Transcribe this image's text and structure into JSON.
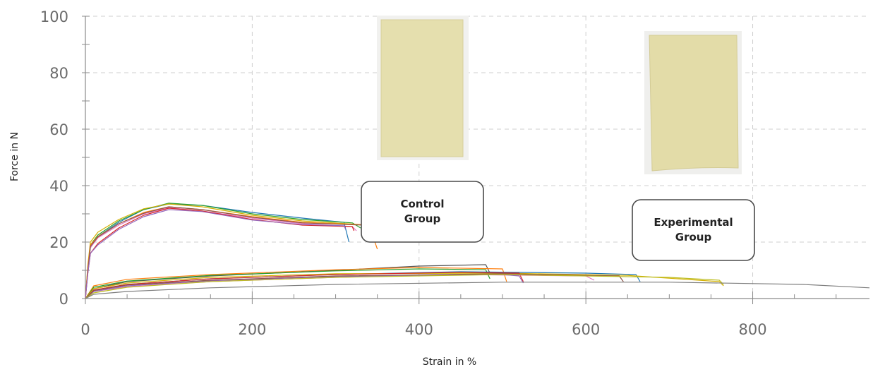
{
  "chart_data": {
    "type": "line",
    "title": "",
    "xlabel": "Strain in %",
    "ylabel": "Force in N",
    "xlim": [
      0,
      940
    ],
    "ylim": [
      0,
      100
    ],
    "x_ticks": [
      0,
      200,
      400,
      600,
      800
    ],
    "y_ticks": [
      0,
      20,
      40,
      60,
      80,
      100
    ],
    "grid": true,
    "annotations": [
      {
        "id": "control",
        "lines": [
          "Control",
          "Group"
        ]
      },
      {
        "id": "experimental",
        "lines": [
          "Experimental",
          "Group"
        ]
      }
    ],
    "series": [
      {
        "group": "control",
        "color": "#1f77b4",
        "points": [
          [
            0,
            0
          ],
          [
            3,
            10
          ],
          [
            6,
            18
          ],
          [
            15,
            22
          ],
          [
            40,
            27
          ],
          [
            70,
            31.5
          ],
          [
            100,
            33.5
          ],
          [
            140,
            33
          ],
          [
            200,
            30.5
          ],
          [
            260,
            28.5
          ],
          [
            310,
            27
          ],
          [
            316,
            20
          ]
        ]
      },
      {
        "group": "control",
        "color": "#2ca02c",
        "points": [
          [
            0,
            0
          ],
          [
            3,
            11
          ],
          [
            6,
            19
          ],
          [
            15,
            22.5
          ],
          [
            40,
            27.5
          ],
          [
            70,
            31.5
          ],
          [
            100,
            33.8
          ],
          [
            140,
            33
          ],
          [
            200,
            30
          ],
          [
            260,
            28
          ],
          [
            320,
            26.8
          ],
          [
            330,
            25
          ]
        ]
      },
      {
        "group": "control",
        "color": "#d4b000",
        "points": [
          [
            0,
            0
          ],
          [
            3,
            12
          ],
          [
            6,
            20
          ],
          [
            15,
            23.5
          ],
          [
            40,
            28
          ],
          [
            70,
            31.8
          ],
          [
            100,
            33.5
          ],
          [
            140,
            32.5
          ],
          [
            200,
            29.5
          ],
          [
            260,
            27.5
          ],
          [
            330,
            26.2
          ],
          [
            340,
            25
          ]
        ]
      },
      {
        "group": "control",
        "color": "#ff7f0e",
        "points": [
          [
            0,
            0
          ],
          [
            3,
            11
          ],
          [
            6,
            19
          ],
          [
            15,
            22
          ],
          [
            40,
            26.5
          ],
          [
            70,
            30.5
          ],
          [
            100,
            32.5
          ],
          [
            140,
            31.5
          ],
          [
            200,
            29
          ],
          [
            260,
            27
          ],
          [
            340,
            26
          ],
          [
            350,
            17.5
          ]
        ]
      },
      {
        "group": "control",
        "color": "#e377c2",
        "points": [
          [
            0,
            0
          ],
          [
            3,
            10
          ],
          [
            6,
            18
          ],
          [
            15,
            21.5
          ],
          [
            40,
            26
          ],
          [
            70,
            30
          ],
          [
            100,
            32.2
          ],
          [
            140,
            31
          ],
          [
            200,
            28.5
          ],
          [
            260,
            26.5
          ],
          [
            320,
            25.5
          ],
          [
            325,
            24
          ]
        ]
      },
      {
        "group": "control",
        "color": "#8c564b",
        "points": [
          [
            0,
            0
          ],
          [
            3,
            10
          ],
          [
            6,
            18.5
          ],
          [
            15,
            21.8
          ],
          [
            40,
            26.5
          ],
          [
            70,
            30.2
          ],
          [
            100,
            32.5
          ],
          [
            140,
            31.5
          ],
          [
            200,
            28.8
          ],
          [
            260,
            26.8
          ],
          [
            335,
            26
          ],
          [
            338,
            24.5
          ]
        ]
      },
      {
        "group": "control",
        "color": "#d62728",
        "points": [
          [
            0,
            0
          ],
          [
            3,
            9
          ],
          [
            6,
            16
          ],
          [
            15,
            19.5
          ],
          [
            40,
            25
          ],
          [
            70,
            29.5
          ],
          [
            100,
            32
          ],
          [
            140,
            31
          ],
          [
            200,
            28
          ],
          [
            260,
            26
          ],
          [
            320,
            25.5
          ],
          [
            322,
            24
          ]
        ]
      },
      {
        "group": "control",
        "color": "#9467bd",
        "points": [
          [
            0,
            0
          ],
          [
            3,
            9
          ],
          [
            6,
            16
          ],
          [
            15,
            19
          ],
          [
            40,
            24.5
          ],
          [
            70,
            29
          ],
          [
            100,
            31.5
          ],
          [
            140,
            30.8
          ],
          [
            200,
            27.8
          ],
          [
            260,
            26.2
          ],
          [
            310,
            25.8
          ],
          [
            312,
            24.5
          ]
        ]
      },
      {
        "group": "experimental",
        "color": "#555555",
        "points": [
          [
            0,
            0
          ],
          [
            10,
            3.5
          ],
          [
            50,
            6
          ],
          [
            150,
            8
          ],
          [
            300,
            10
          ],
          [
            400,
            11.5
          ],
          [
            480,
            12
          ],
          [
            485,
            9
          ]
        ]
      },
      {
        "group": "experimental",
        "color": "#ff7f0e",
        "points": [
          [
            0,
            0
          ],
          [
            10,
            4.5
          ],
          [
            50,
            6.8
          ],
          [
            150,
            8.5
          ],
          [
            300,
            10.2
          ],
          [
            400,
            11
          ],
          [
            500,
            10.5
          ],
          [
            505,
            6
          ]
        ]
      },
      {
        "group": "experimental",
        "color": "#2ca02c",
        "points": [
          [
            0,
            0
          ],
          [
            10,
            4
          ],
          [
            50,
            6.2
          ],
          [
            150,
            8.2
          ],
          [
            300,
            9.8
          ],
          [
            400,
            10.5
          ],
          [
            480,
            10.2
          ],
          [
            485,
            7
          ]
        ]
      },
      {
        "group": "experimental",
        "color": "#1f77b4",
        "points": [
          [
            0,
            0
          ],
          [
            10,
            3
          ],
          [
            50,
            5
          ],
          [
            150,
            7
          ],
          [
            300,
            8.5
          ],
          [
            450,
            9.5
          ],
          [
            600,
            9
          ],
          [
            660,
            8.5
          ],
          [
            665,
            6
          ]
        ]
      },
      {
        "group": "experimental",
        "color": "#d4b000",
        "points": [
          [
            0,
            0
          ],
          [
            10,
            3.5
          ],
          [
            50,
            5.5
          ],
          [
            150,
            7.5
          ],
          [
            300,
            8.8
          ],
          [
            500,
            9
          ],
          [
            650,
            8.2
          ],
          [
            760,
            6
          ],
          [
            765,
            4.5
          ]
        ]
      },
      {
        "group": "experimental",
        "color": "#d62728",
        "points": [
          [
            0,
            0
          ],
          [
            10,
            3
          ],
          [
            50,
            5
          ],
          [
            150,
            7
          ],
          [
            300,
            8.5
          ],
          [
            450,
            9.3
          ],
          [
            520,
            9
          ],
          [
            525,
            6
          ]
        ]
      },
      {
        "group": "experimental",
        "color": "#e377c2",
        "points": [
          [
            0,
            0
          ],
          [
            10,
            2.5
          ],
          [
            50,
            4.2
          ],
          [
            150,
            6
          ],
          [
            300,
            7.5
          ],
          [
            450,
            8.5
          ],
          [
            600,
            8
          ],
          [
            610,
            6.5
          ]
        ]
      },
      {
        "group": "experimental",
        "color": "#9467bd",
        "points": [
          [
            0,
            0
          ],
          [
            10,
            2.5
          ],
          [
            50,
            4.5
          ],
          [
            150,
            6.3
          ],
          [
            300,
            7.8
          ],
          [
            500,
            8.5
          ],
          [
            520,
            8
          ],
          [
            525,
            5.5
          ]
        ]
      },
      {
        "group": "experimental",
        "color": "#8c564b",
        "points": [
          [
            0,
            0
          ],
          [
            10,
            2.8
          ],
          [
            50,
            4.8
          ],
          [
            150,
            6.5
          ],
          [
            300,
            8
          ],
          [
            500,
            8.8
          ],
          [
            640,
            8
          ],
          [
            645,
            6
          ]
        ]
      },
      {
        "group": "experimental",
        "color": "#bcbd22",
        "points": [
          [
            0,
            0
          ],
          [
            10,
            2
          ],
          [
            50,
            4
          ],
          [
            150,
            6
          ],
          [
            300,
            7.5
          ],
          [
            500,
            8.5
          ],
          [
            700,
            7.5
          ],
          [
            760,
            6.5
          ],
          [
            765,
            5
          ]
        ]
      },
      {
        "group": "experimental",
        "color": "#7f7f7f",
        "points": [
          [
            0,
            0
          ],
          [
            10,
            1.5
          ],
          [
            50,
            2.5
          ],
          [
            150,
            3.8
          ],
          [
            300,
            5
          ],
          [
            500,
            5.8
          ],
          [
            700,
            5.8
          ],
          [
            860,
            5
          ],
          [
            940,
            3.8
          ]
        ]
      }
    ]
  }
}
